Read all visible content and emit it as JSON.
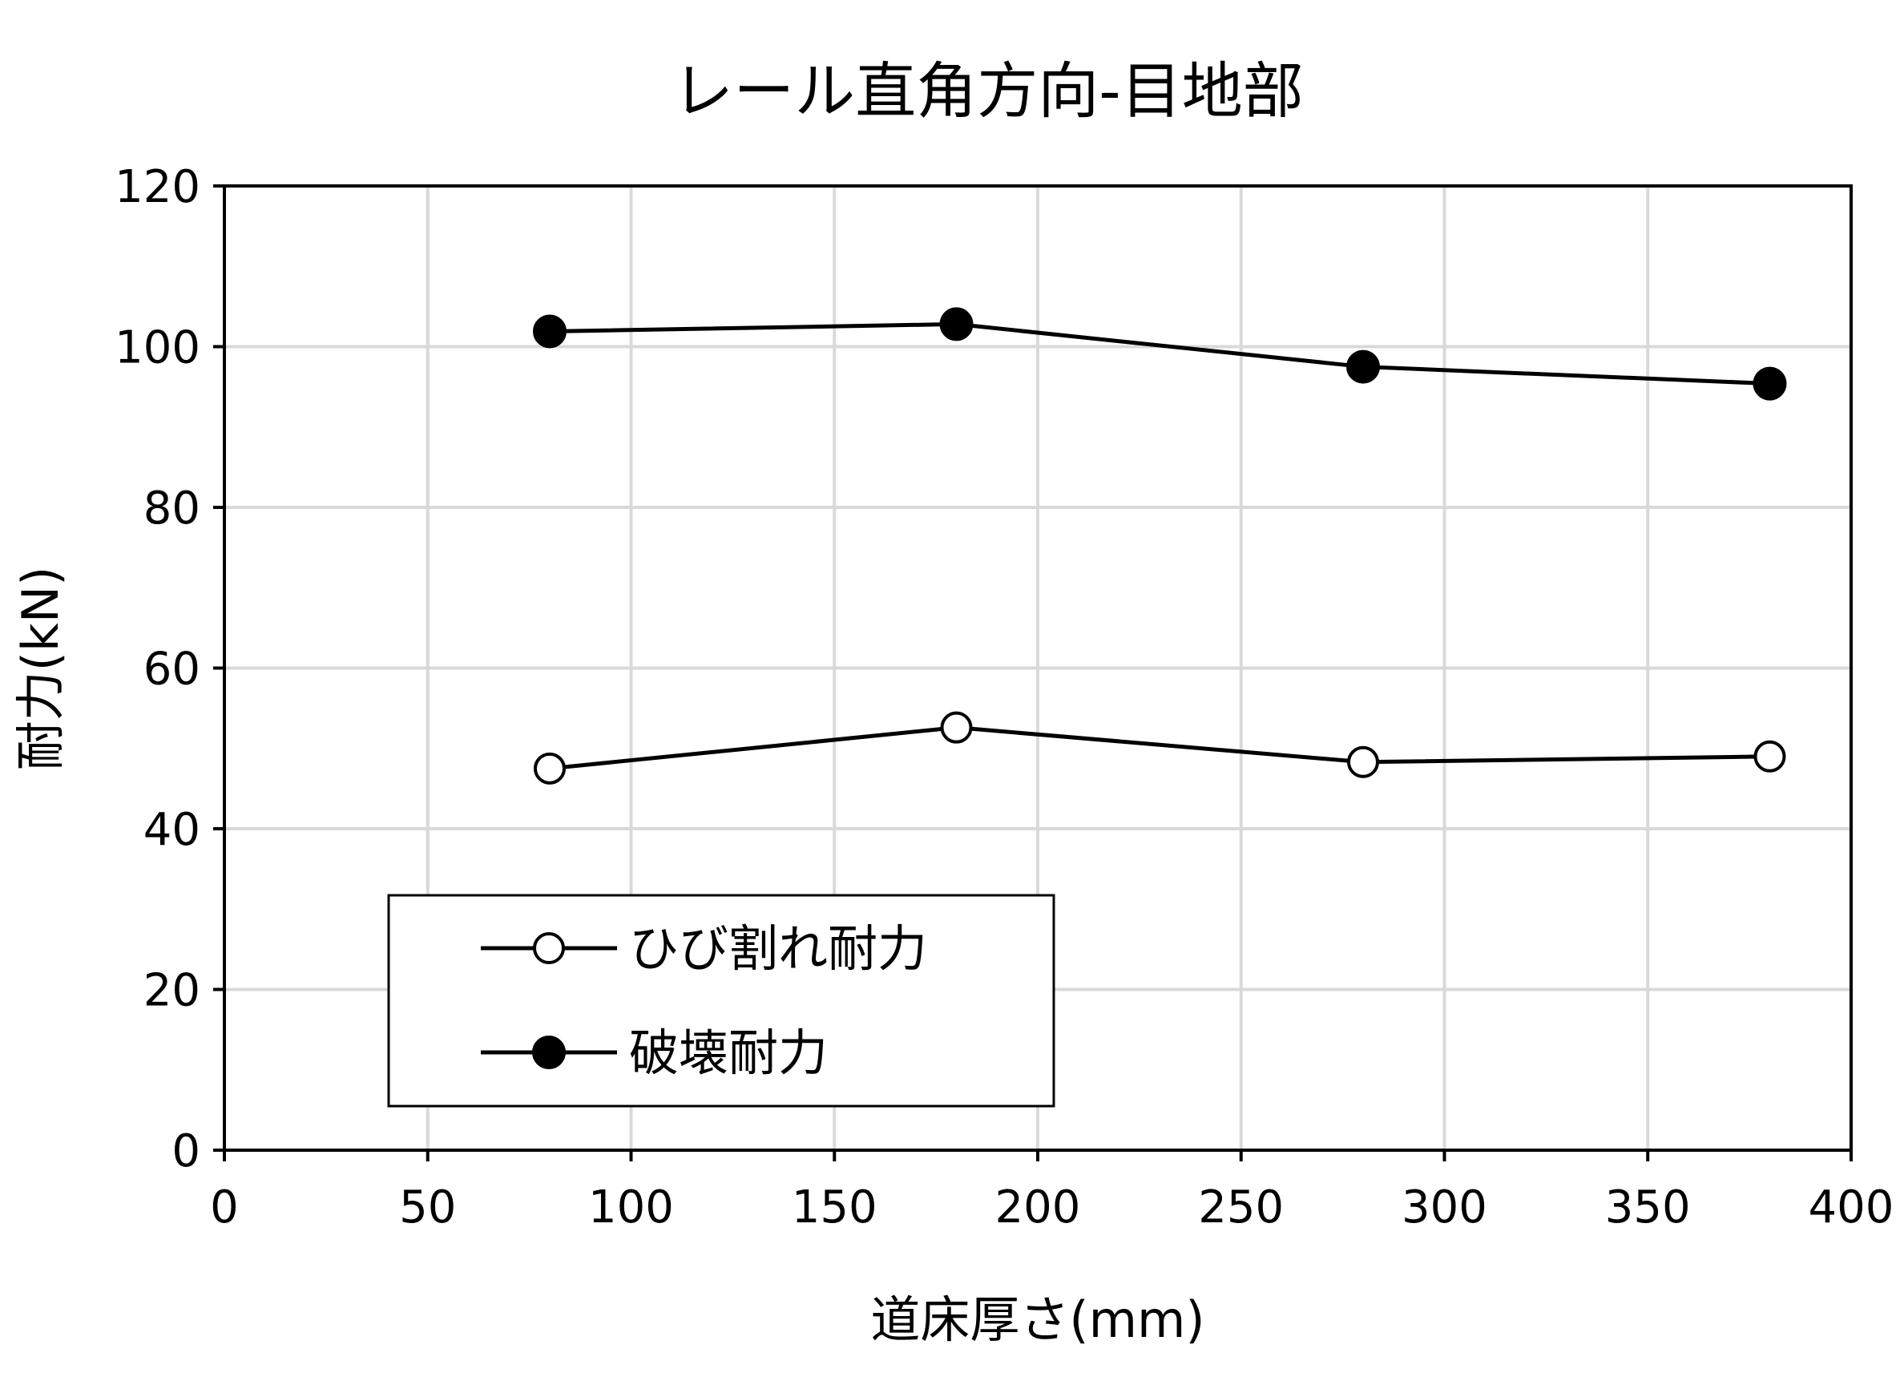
{
  "chart_data": {
    "type": "line",
    "title": "レール直角方向-目地部",
    "xlabel": "道床厚さ(mm)",
    "ylabel": "耐力(kN)",
    "xlim": [
      0,
      400
    ],
    "ylim": [
      0,
      120
    ],
    "xticks": [
      "0",
      "50",
      "100",
      "150",
      "200",
      "250",
      "300",
      "350",
      "400"
    ],
    "yticks": [
      "0",
      "20",
      "40",
      "60",
      "80",
      "100",
      "120"
    ],
    "grid": true,
    "legend_position": "bottom-left",
    "x": [
      80,
      180,
      280,
      380
    ],
    "series": [
      {
        "name": "ひび割れ耐力",
        "marker": "open-circle",
        "color": "#000000",
        "values": [
          47.5,
          52.6,
          48.3,
          49.0
        ]
      },
      {
        "name": "破壊耐力",
        "marker": "filled-circle",
        "color": "#000000",
        "values": [
          101.9,
          102.8,
          97.5,
          95.4
        ]
      }
    ]
  }
}
